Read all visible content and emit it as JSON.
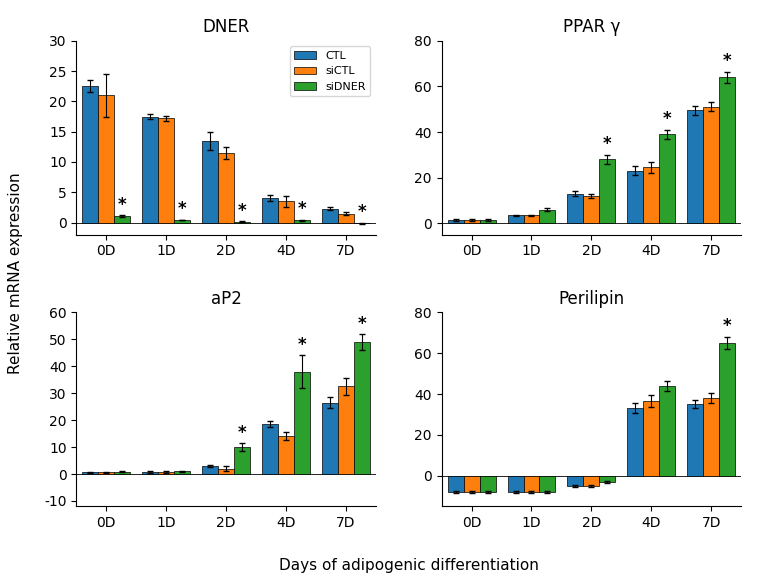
{
  "chart_data": [
    {
      "type": "bar",
      "title": "DNER",
      "categories": [
        "0D",
        "1D",
        "2D",
        "4D",
        "7D"
      ],
      "series": [
        {
          "name": "CTL",
          "values": [
            22.5,
            17.5,
            13.5,
            4.1,
            2.3
          ],
          "errors": [
            1.0,
            0.4,
            1.5,
            0.5,
            0.3
          ]
        },
        {
          "name": "siCTL",
          "values": [
            21.0,
            17.2,
            11.5,
            3.5,
            1.5
          ],
          "errors": [
            3.5,
            0.4,
            1.0,
            0.9,
            0.3
          ]
        },
        {
          "name": "siDNER",
          "values": [
            1.1,
            0.4,
            0.15,
            0.4,
            -0.1
          ],
          "errors": [
            0.1,
            0.05,
            0.1,
            0.1,
            0.1
          ]
        }
      ],
      "ylim": [
        -2,
        30
      ],
      "yticks": [
        0,
        5,
        10,
        15,
        20,
        25,
        30
      ],
      "legend": "upper right",
      "annotations": [
        {
          "text": "*",
          "category": "0D",
          "series": "siDNER"
        },
        {
          "text": "*",
          "category": "1D",
          "series": "siDNER"
        },
        {
          "text": "*",
          "category": "2D",
          "series": "siDNER"
        },
        {
          "text": "*",
          "category": "4D",
          "series": "siDNER"
        },
        {
          "text": "*",
          "category": "7D",
          "series": "siDNER"
        }
      ]
    },
    {
      "type": "bar",
      "title": "PPAR γ",
      "categories": [
        "0D",
        "1D",
        "2D",
        "4D",
        "7D"
      ],
      "series": [
        {
          "name": "CTL",
          "values": [
            1.5,
            3.5,
            13.0,
            23.0,
            49.5
          ],
          "errors": [
            0.3,
            0.3,
            1.0,
            2.0,
            2.0
          ]
        },
        {
          "name": "siCTL",
          "values": [
            1.5,
            3.5,
            12.0,
            24.5,
            51.0
          ],
          "errors": [
            0.3,
            0.3,
            1.0,
            2.5,
            2.0
          ]
        },
        {
          "name": "siDNER",
          "values": [
            1.5,
            6.0,
            28.0,
            39.0,
            64.0
          ],
          "errors": [
            0.3,
            0.5,
            2.0,
            2.0,
            2.5
          ]
        }
      ],
      "ylim": [
        -5,
        80
      ],
      "yticks": [
        0,
        20,
        40,
        60,
        80
      ],
      "annotations": [
        {
          "text": "*",
          "category": "2D",
          "series": "siDNER"
        },
        {
          "text": "*",
          "category": "4D",
          "series": "siDNER"
        },
        {
          "text": "*",
          "category": "7D",
          "series": "siDNER"
        }
      ]
    },
    {
      "type": "bar",
      "title": "aP2",
      "categories": [
        "0D",
        "1D",
        "2D",
        "4D",
        "7D"
      ],
      "series": [
        {
          "name": "CTL",
          "values": [
            0.6,
            0.7,
            3.0,
            18.5,
            26.5
          ],
          "errors": [
            0.3,
            0.3,
            0.5,
            1.0,
            2.0
          ]
        },
        {
          "name": "siCTL",
          "values": [
            0.6,
            0.8,
            2.0,
            14.0,
            32.5
          ],
          "errors": [
            0.3,
            0.3,
            0.8,
            1.5,
            3.0
          ]
        },
        {
          "name": "siDNER",
          "values": [
            0.8,
            1.0,
            10.0,
            38.0,
            49.0
          ],
          "errors": [
            0.2,
            0.2,
            1.5,
            6.0,
            3.0
          ]
        }
      ],
      "ylim": [
        -12,
        60
      ],
      "yticks": [
        -10,
        0,
        10,
        20,
        30,
        40,
        50,
        60
      ],
      "annotations": [
        {
          "text": "*",
          "category": "2D",
          "series": "siDNER"
        },
        {
          "text": "*",
          "category": "4D",
          "series": "siDNER"
        },
        {
          "text": "*",
          "category": "7D",
          "series": "siDNER"
        }
      ]
    },
    {
      "type": "bar",
      "title": "Perilipin",
      "categories": [
        "0D",
        "1D",
        "2D",
        "4D",
        "7D"
      ],
      "series": [
        {
          "name": "CTL",
          "values": [
            -8.0,
            -8.0,
            -5.0,
            33.0,
            35.0
          ],
          "errors": [
            0.5,
            0.5,
            0.5,
            2.5,
            2.0
          ]
        },
        {
          "name": "siCTL",
          "values": [
            -8.0,
            -8.0,
            -5.0,
            36.5,
            38.0
          ],
          "errors": [
            0.5,
            0.5,
            0.5,
            3.0,
            2.5
          ]
        },
        {
          "name": "siDNER",
          "values": [
            -8.0,
            -8.0,
            -3.0,
            44.0,
            65.0
          ],
          "errors": [
            0.5,
            0.5,
            0.5,
            2.5,
            3.0
          ]
        }
      ],
      "ylim": [
        -15,
        80
      ],
      "yticks": [
        0,
        20,
        40,
        60,
        80
      ],
      "annotations": [
        {
          "text": "*",
          "category": "7D",
          "series": "siDNER"
        }
      ]
    }
  ],
  "ylabel": "Relative mRNA expression",
  "xlabel": "Days of adipogenic differentiation"
}
